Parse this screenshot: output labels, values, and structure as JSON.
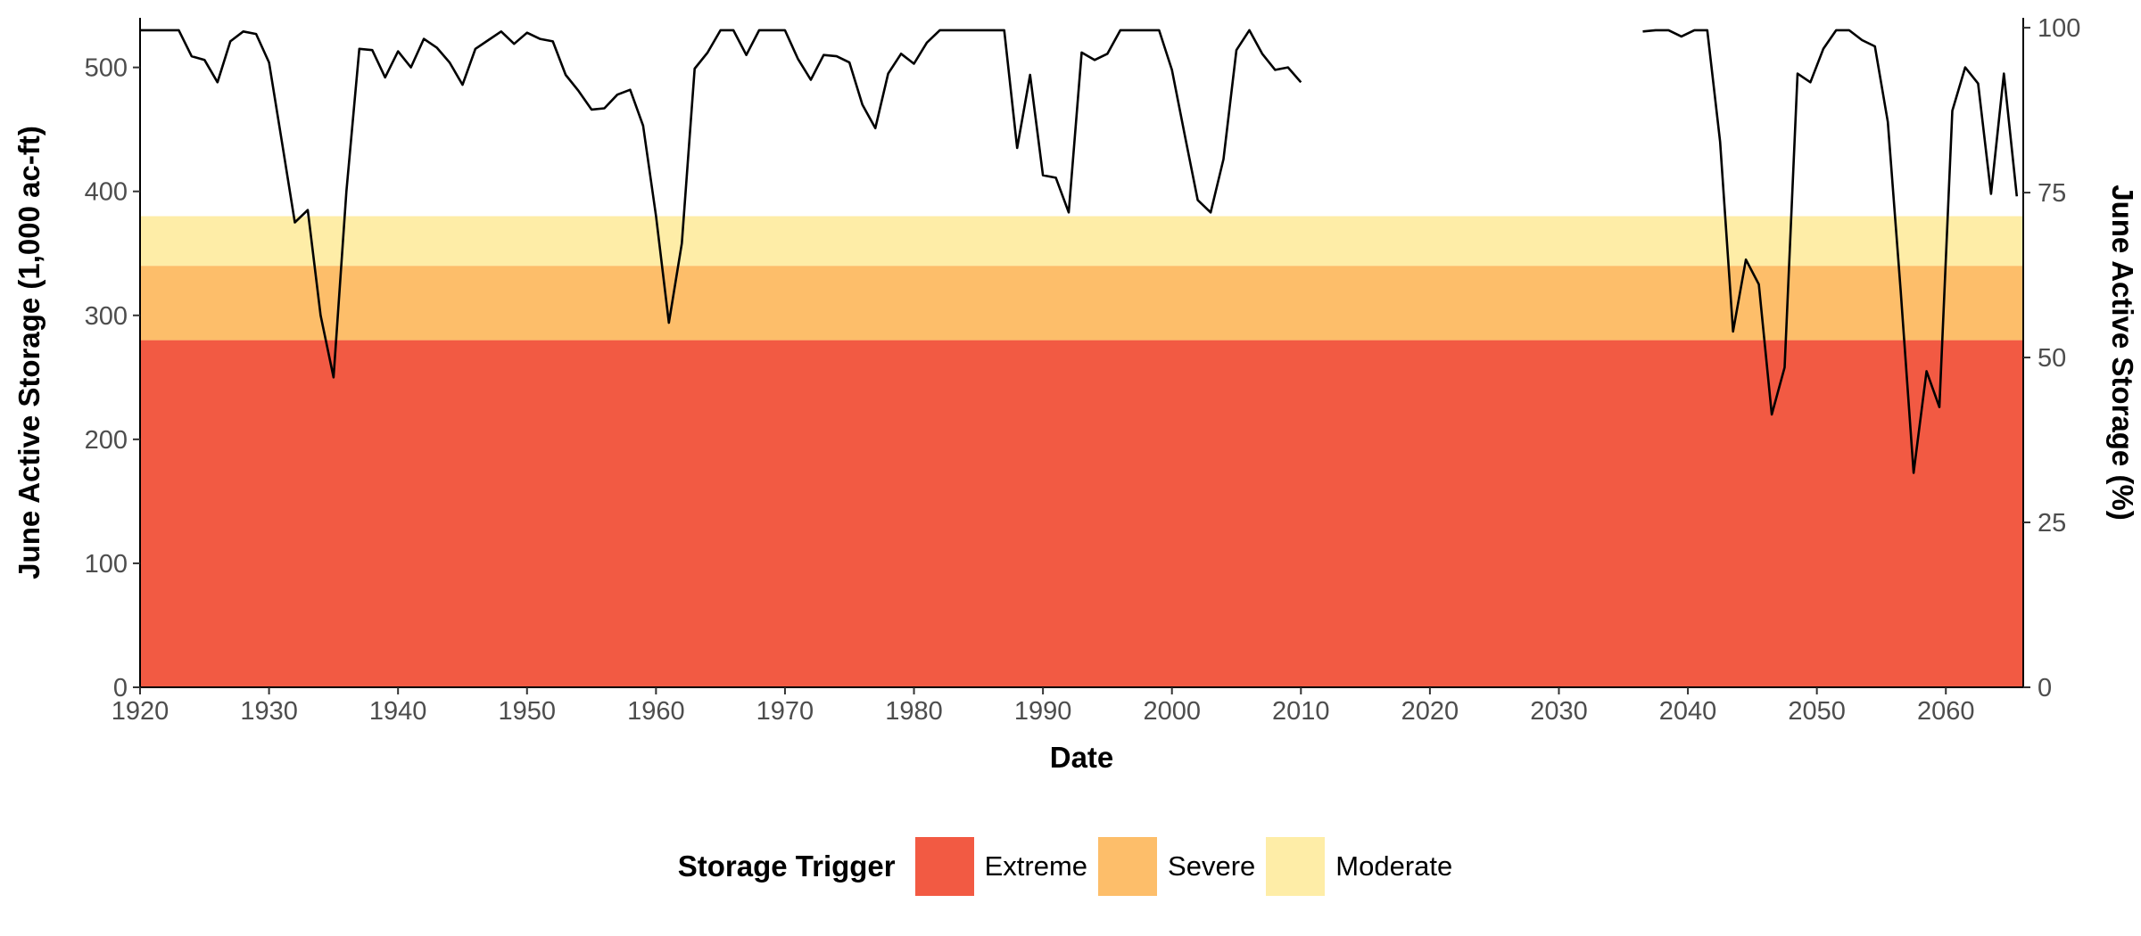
{
  "chart_data": {
    "type": "line",
    "title": "",
    "xlabel": "Date",
    "ylabel": "June Active Storage (1,000 ac-ft)",
    "y2label": "June Active Storage (%)",
    "xlim": [
      1920,
      2066
    ],
    "ylim": [
      0,
      540
    ],
    "y2lim": [
      0,
      101.5
    ],
    "x_ticks": [
      1920,
      1930,
      1940,
      1950,
      1960,
      1970,
      1980,
      1990,
      2000,
      2010,
      2020,
      2030,
      2040,
      2050,
      2060
    ],
    "y_ticks": [
      0,
      100,
      200,
      300,
      400,
      500
    ],
    "y2_ticks": [
      0,
      25,
      50,
      75,
      100
    ],
    "grid": false,
    "legend": {
      "title": "Storage Trigger",
      "placement": "bottom",
      "items": [
        {
          "label": "Extreme",
          "color": "#f25a43"
        },
        {
          "label": "Severe",
          "color": "#fdbe6a"
        },
        {
          "label": "Moderate",
          "color": "#feeda7"
        }
      ]
    },
    "bands": [
      {
        "name": "Extreme",
        "from": 0,
        "to": 280,
        "color": "#f25a43"
      },
      {
        "name": "Severe",
        "from": 280,
        "to": 340,
        "color": "#fdbe6a"
      },
      {
        "name": "Moderate",
        "from": 340,
        "to": 380,
        "color": "#feeda7"
      }
    ],
    "series": [
      {
        "color": "#000000",
        "segments": [
          {
            "x": [
              1920,
              1921,
              1922,
              1923,
              1924,
              1925,
              1926,
              1927,
              1928,
              1929,
              1930,
              1931,
              1932,
              1933,
              1934,
              1935,
              1936,
              1937,
              1938,
              1939,
              1940,
              1941,
              1942,
              1943,
              1944,
              1945,
              1946,
              1947,
              1948,
              1949,
              1950,
              1951,
              1952,
              1953,
              1954,
              1955,
              1956,
              1957,
              1958,
              1959,
              1960,
              1961,
              1962,
              1963,
              1964,
              1965,
              1966,
              1967,
              1968,
              1969,
              1970,
              1971,
              1972,
              1973,
              1974,
              1975,
              1976,
              1977,
              1978,
              1979,
              1980,
              1981,
              1982,
              1983,
              1984,
              1985,
              1986,
              1987,
              1988,
              1989,
              1990,
              1991,
              1992,
              1993,
              1994,
              1995,
              1996,
              1997,
              1998,
              1999,
              2000,
              2001,
              2002,
              2003,
              2004,
              2005,
              2006,
              2007,
              2008,
              2009,
              2010
            ],
            "y": [
              530,
              530,
              530,
              530,
              509,
              506,
              488,
              521,
              529,
              527,
              504,
              440,
              375,
              385,
              300,
              250,
              400,
              515,
              514,
              492,
              513,
              500,
              523,
              516,
              504,
              486,
              515,
              522,
              529,
              519,
              528,
              523,
              521,
              494,
              481,
              466,
              467,
              478,
              482,
              453,
              380,
              294,
              358,
              499,
              512,
              530,
              530,
              510,
              530,
              530,
              530,
              507,
              490,
              510,
              509,
              504,
              470,
              451,
              495,
              511,
              503,
              520,
              530,
              530,
              530,
              530,
              530,
              530,
              435,
              494,
              413,
              411,
              383,
              512,
              506,
              511,
              530,
              530,
              530,
              530,
              498,
              445,
              393,
              383,
              426,
              514,
              530,
              511,
              498,
              500,
              488
            ]
          },
          {
            "x": [
              2036.5,
              2037.5,
              2038.5,
              2039.5,
              2040.5,
              2041.5,
              2042.5,
              2043.5,
              2044.5,
              2045.5,
              2046.5,
              2047.5,
              2048.5,
              2049.5,
              2050.5,
              2051.5,
              2052.5,
              2053.5,
              2054.5,
              2055.5,
              2056.5,
              2057.5,
              2058.5,
              2059.5,
              2060.5,
              2061.5,
              2062.5,
              2063.5,
              2064.5,
              2065.5
            ],
            "y": [
              529,
              530,
              530,
              525,
              530,
              530,
              440,
              287,
              345,
              325,
              220,
              258,
              495,
              488,
              515,
              530,
              530,
              522,
              517,
              456,
              320,
              173,
              255,
              226,
              465,
              500,
              487,
              398,
              495,
              396
            ]
          }
        ]
      }
    ]
  }
}
